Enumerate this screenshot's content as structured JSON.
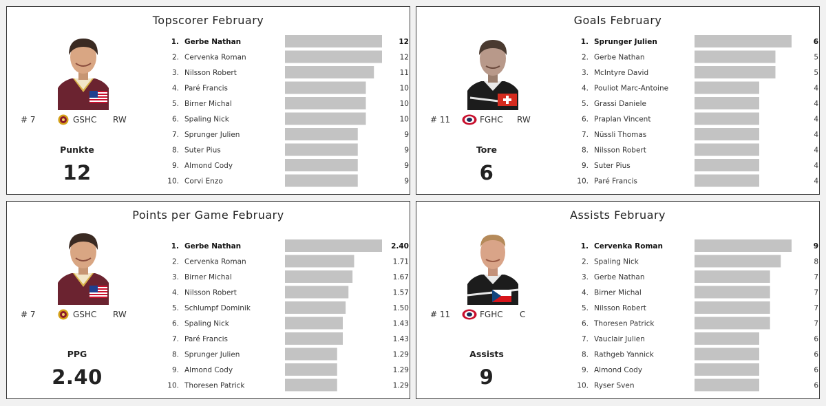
{
  "colors": {
    "bar": "#c3c3c3",
    "panel_border": "#3a3a3a",
    "background": "#f1f1f1"
  },
  "panels": [
    {
      "title": "Topscorer February",
      "player": {
        "number": "# 7",
        "team": "GSHC",
        "position": "RW",
        "flag_icon": "usa-flag-icon",
        "logo_icon": "gshc-logo-icon"
      },
      "stat_label": "Punkte",
      "stat_value": "12"
    },
    {
      "title": "Goals February",
      "player": {
        "number": "# 11",
        "team": "FGHC",
        "position": "RW",
        "flag_icon": "switzerland-flag-icon",
        "logo_icon": "fghc-logo-icon"
      },
      "stat_label": "Tore",
      "stat_value": "6"
    },
    {
      "title": "Points per Game February",
      "player": {
        "number": "# 7",
        "team": "GSHC",
        "position": "RW",
        "flag_icon": "usa-flag-icon",
        "logo_icon": "gshc-logo-icon"
      },
      "stat_label": "PPG",
      "stat_value": "2.40"
    },
    {
      "title": "Assists February",
      "player": {
        "number": "# 11",
        "team": "FGHC",
        "position": "C",
        "flag_icon": "czech-flag-icon",
        "logo_icon": "fghc-logo-icon"
      },
      "stat_label": "Assists",
      "stat_value": "9"
    }
  ],
  "chart_data": [
    {
      "type": "bar",
      "title": "Topscorer February",
      "ranks": [
        "1.",
        "2.",
        "3.",
        "4.",
        "5.",
        "6.",
        "7.",
        "8.",
        "9.",
        "10."
      ],
      "categories": [
        "Gerbe Nathan",
        "Cervenka Roman",
        "Nilsson Robert",
        "Paré Francis",
        "Birner Michal",
        "Spaling Nick",
        "Sprunger Julien",
        "Suter Pius",
        "Almond Cody",
        "Corvi Enzo"
      ],
      "values": [
        12,
        12,
        11,
        10,
        10,
        10,
        9,
        9,
        9,
        9
      ],
      "labels": [
        "12",
        "12",
        "11",
        "10",
        "10",
        "10",
        "9",
        "9",
        "9",
        "9"
      ],
      "xlim": [
        0,
        12
      ]
    },
    {
      "type": "bar",
      "title": "Goals February",
      "ranks": [
        "1.",
        "2.",
        "3.",
        "4.",
        "5.",
        "6.",
        "7.",
        "8.",
        "9.",
        "10."
      ],
      "categories": [
        "Sprunger Julien",
        "Gerbe Nathan",
        "McIntyre David",
        "Pouliot Marc-Antoine",
        "Grassi Daniele",
        "Praplan Vincent",
        "Nüssli Thomas",
        "Nilsson Robert",
        "Suter Pius",
        "Paré Francis"
      ],
      "values": [
        6,
        5,
        5,
        4,
        4,
        4,
        4,
        4,
        4,
        4
      ],
      "labels": [
        "6",
        "5",
        "5",
        "4",
        "4",
        "4",
        "4",
        "4",
        "4",
        "4"
      ],
      "xlim": [
        0,
        6
      ]
    },
    {
      "type": "bar",
      "title": "Points per Game February",
      "ranks": [
        "1.",
        "2.",
        "3.",
        "4.",
        "5.",
        "6.",
        "7.",
        "8.",
        "9.",
        "10."
      ],
      "categories": [
        "Gerbe Nathan",
        "Cervenka Roman",
        "Birner Michal",
        "Nilsson Robert",
        "Schlumpf Dominik",
        "Spaling Nick",
        "Paré Francis",
        "Sprunger Julien",
        "Almond Cody",
        "Thoresen Patrick"
      ],
      "values": [
        2.4,
        1.71,
        1.67,
        1.57,
        1.5,
        1.43,
        1.43,
        1.29,
        1.29,
        1.29
      ],
      "labels": [
        "2.40",
        "1.71",
        "1.67",
        "1.57",
        "1.50",
        "1.43",
        "1.43",
        "1.29",
        "1.29",
        "1.29"
      ],
      "xlim": [
        0,
        2.4
      ]
    },
    {
      "type": "bar",
      "title": "Assists February",
      "ranks": [
        "1.",
        "2.",
        "3.",
        "4.",
        "5.",
        "6.",
        "7.",
        "8.",
        "9.",
        "10."
      ],
      "categories": [
        "Cervenka Roman",
        "Spaling Nick",
        "Gerbe Nathan",
        "Birner Michal",
        "Nilsson Robert",
        "Thoresen Patrick",
        "Vauclair Julien",
        "Rathgeb Yannick",
        "Almond Cody",
        "Ryser Sven"
      ],
      "values": [
        9,
        8,
        7,
        7,
        7,
        7,
        6,
        6,
        6,
        6
      ],
      "labels": [
        "9",
        "8",
        "7",
        "7",
        "7",
        "7",
        "6",
        "6",
        "6",
        "6"
      ],
      "xlim": [
        0,
        9
      ]
    }
  ]
}
